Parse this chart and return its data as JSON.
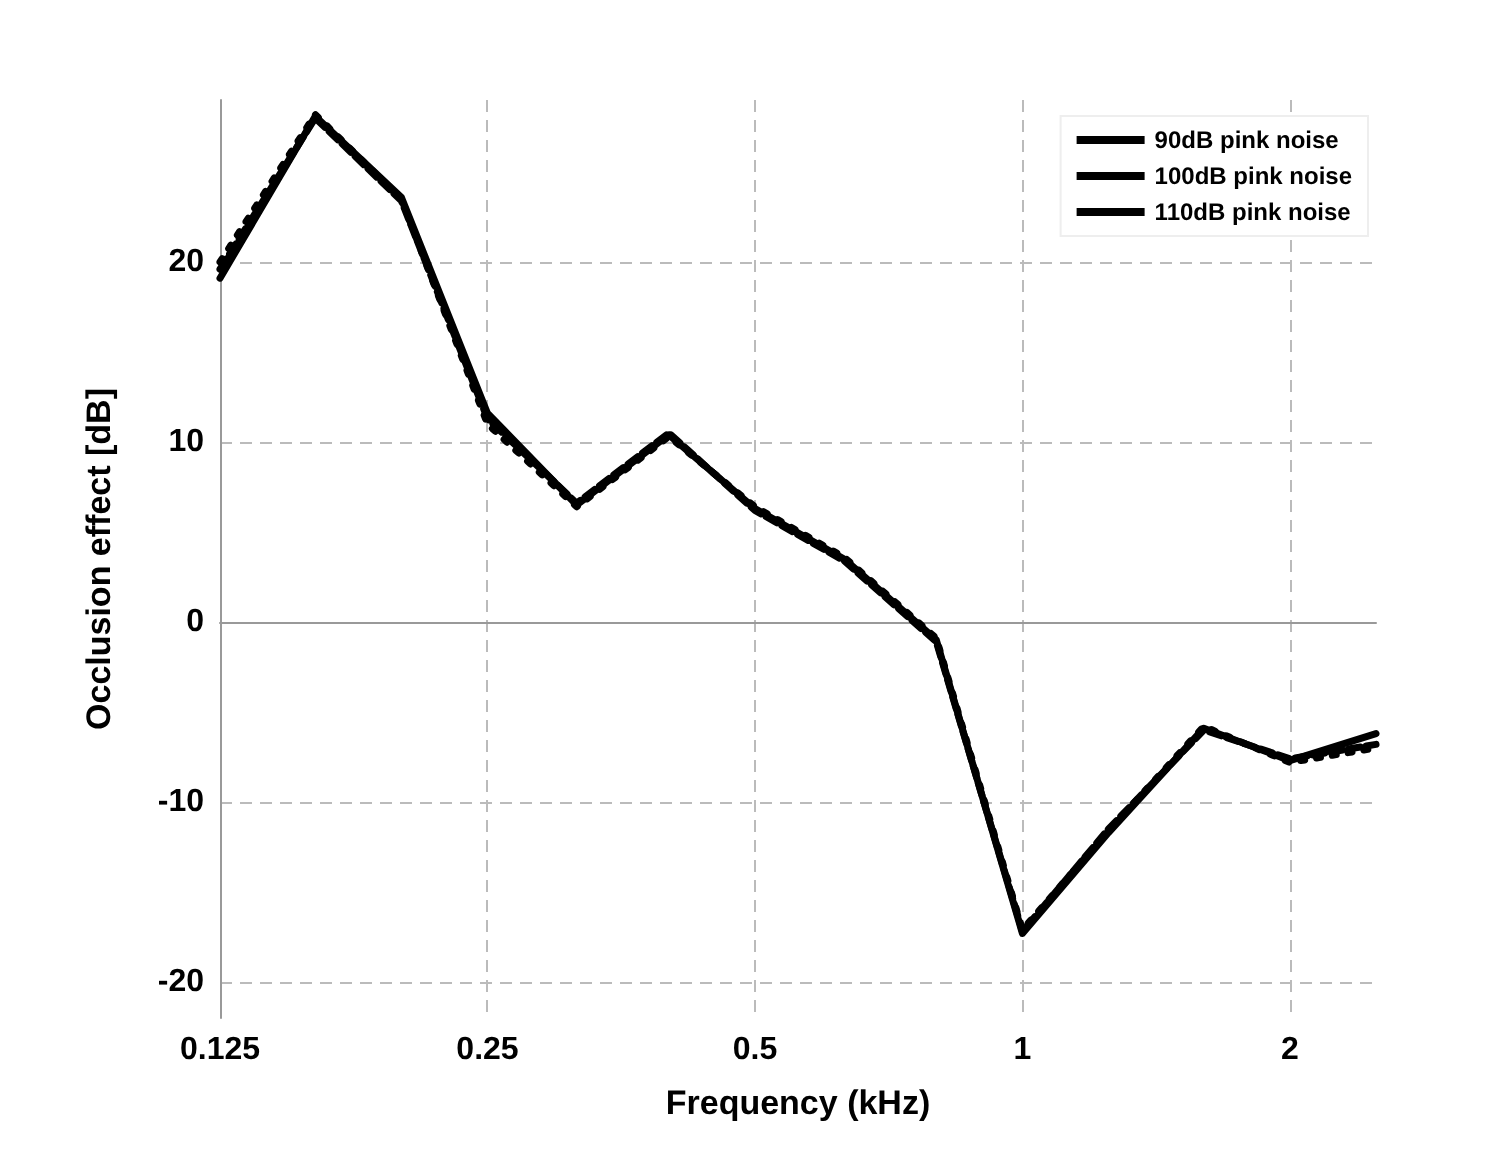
{
  "chart_data": {
    "type": "line",
    "xlabel": "Frequency (kHz)",
    "ylabel": "Occlusion effect [dB]",
    "x": [
      0.125,
      0.16,
      0.2,
      0.25,
      0.315,
      0.4,
      0.5,
      0.63,
      0.8,
      1,
      1.25,
      1.6,
      2,
      2.5
    ],
    "series": [
      {
        "name": "90dB pink noise",
        "color": "#000000",
        "line_style": "solid",
        "values": [
          19.1,
          28.1,
          23.6,
          11.6,
          6.5,
          10.4,
          6.3,
          3.5,
          -1.0,
          -17.3,
          -11.7,
          -5.9,
          -7.7,
          -6.2
        ]
      },
      {
        "name": "100dB pink noise",
        "color": "#000000",
        "line_style": "dashed",
        "values": [
          19.6,
          28.0,
          23.4,
          11.3,
          6.6,
          10.5,
          6.2,
          3.4,
          -1.1,
          -17.2,
          -11.5,
          -6.0,
          -7.6,
          -6.8
        ]
      },
      {
        "name": "110dB pink noise",
        "color": "#000000",
        "line_style": "dotted",
        "values": [
          20.0,
          28.2,
          23.5,
          11.0,
          6.4,
          10.3,
          6.4,
          3.6,
          -0.9,
          -17.1,
          -11.6,
          -5.8,
          -7.8,
          -7.0
        ]
      }
    ],
    "xlim": [
      0.125,
      2.5
    ],
    "xticks": [
      0.125,
      0.25,
      0.5,
      1,
      2
    ],
    "ylim": [
      -22,
      29
    ],
    "yticks": [
      -20,
      -10,
      0,
      10,
      20
    ],
    "log": "x",
    "grid": true,
    "legend": "top right",
    "marker": "none"
  }
}
